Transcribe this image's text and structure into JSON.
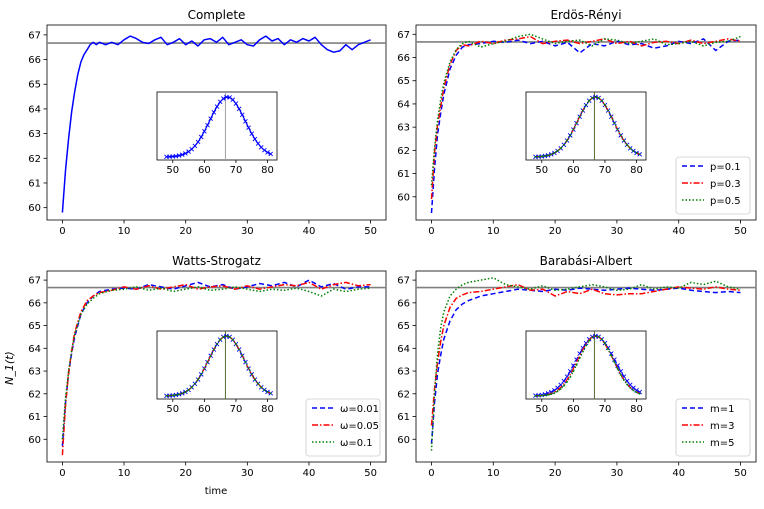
{
  "figure": {
    "ylabel": "N_1(t)",
    "xlabel": "time"
  },
  "chart_data": [
    {
      "type": "line",
      "title": "Complete",
      "xlim": [
        -2.5,
        52.5
      ],
      "ylim": [
        59.5,
        67.4
      ],
      "xticks": [
        0,
        10,
        20,
        30,
        40,
        50
      ],
      "yticks": [
        60,
        61,
        62,
        63,
        64,
        65,
        66,
        67
      ],
      "reference_line": 66.67,
      "legend": null,
      "series": [
        {
          "style": "solid",
          "color": "#0000ff",
          "x": [
            0,
            0.5,
            1,
            1.5,
            2,
            2.5,
            3,
            3.5,
            4,
            4.5,
            5,
            5.5,
            6,
            7,
            8,
            9,
            10,
            11,
            12,
            13,
            14,
            15,
            16,
            17,
            18,
            19,
            20,
            21,
            22,
            23,
            24,
            25,
            26,
            27,
            28,
            29,
            30,
            31,
            32,
            33,
            34,
            35,
            36,
            37,
            38,
            39,
            40,
            41,
            42,
            43,
            44,
            45,
            46,
            47,
            48,
            49,
            50
          ],
          "y": [
            59.8,
            61.5,
            62.8,
            63.9,
            64.7,
            65.4,
            65.9,
            66.2,
            66.4,
            66.6,
            66.7,
            66.6,
            66.7,
            66.6,
            66.7,
            66.6,
            66.8,
            66.95,
            66.85,
            66.7,
            66.65,
            66.8,
            66.9,
            66.6,
            66.7,
            66.85,
            66.6,
            66.75,
            66.55,
            66.8,
            66.85,
            66.7,
            66.9,
            66.6,
            66.7,
            66.8,
            66.6,
            66.55,
            66.8,
            66.95,
            66.75,
            66.85,
            66.6,
            66.8,
            66.7,
            66.85,
            66.75,
            66.9,
            66.6,
            66.4,
            66.3,
            66.35,
            66.6,
            66.4,
            66.6,
            66.7,
            66.8
          ]
        }
      ],
      "inset": {
        "xlim": [
          45,
          83
        ],
        "xticks": [
          50,
          60,
          70,
          80
        ],
        "ref_x": 66.67,
        "series": [
          {
            "style": "solid-x",
            "color": "#0000ff",
            "mean": 67.3,
            "sd": 5.6
          }
        ]
      }
    },
    {
      "type": "line",
      "title": "Erdös-Rényi",
      "xlim": [
        -2.5,
        52.5
      ],
      "ylim": [
        59,
        67.4
      ],
      "xticks": [
        0,
        10,
        20,
        30,
        40,
        50
      ],
      "yticks": [
        60,
        61,
        62,
        63,
        64,
        65,
        66,
        67
      ],
      "reference_line": 66.67,
      "legend": "lower right",
      "series": [
        {
          "name": "p=0.1",
          "style": "dashed",
          "color": "#0000ff",
          "x": [
            0,
            0.5,
            1,
            1.5,
            2,
            3,
            4,
            5,
            6,
            8,
            10,
            12,
            14,
            16,
            18,
            20,
            22,
            24,
            26,
            28,
            30,
            32,
            34,
            36,
            38,
            40,
            42,
            44,
            46,
            48,
            50
          ],
          "y": [
            59.3,
            61.2,
            62.7,
            63.6,
            64.4,
            65.5,
            66.1,
            66.45,
            66.55,
            66.6,
            66.7,
            66.65,
            66.75,
            66.6,
            66.7,
            66.5,
            66.65,
            66.2,
            66.6,
            66.5,
            66.7,
            66.55,
            66.6,
            66.4,
            66.5,
            66.7,
            66.6,
            66.8,
            66.3,
            66.7,
            66.75
          ]
        },
        {
          "name": "p=0.3",
          "style": "dashdot",
          "color": "#ff0000",
          "x": [
            0,
            0.5,
            1,
            1.5,
            2,
            3,
            4,
            5,
            6,
            8,
            10,
            12,
            14,
            16,
            18,
            20,
            22,
            24,
            26,
            28,
            30,
            32,
            34,
            36,
            38,
            40,
            42,
            44,
            46,
            48,
            50
          ],
          "y": [
            59.9,
            61.9,
            63.1,
            63.9,
            64.7,
            65.7,
            66.3,
            66.55,
            66.5,
            66.7,
            66.6,
            66.75,
            66.8,
            66.9,
            66.6,
            66.7,
            66.75,
            66.6,
            66.7,
            66.8,
            66.6,
            66.7,
            66.5,
            66.65,
            66.7,
            66.6,
            66.75,
            66.6,
            66.7,
            66.8,
            66.7
          ]
        },
        {
          "name": "p=0.5",
          "style": "dotted",
          "color": "#008000",
          "x": [
            0,
            0.5,
            1,
            1.5,
            2,
            3,
            4,
            5,
            6,
            8,
            10,
            12,
            14,
            16,
            18,
            20,
            22,
            24,
            26,
            28,
            30,
            32,
            34,
            36,
            38,
            40,
            42,
            44,
            46,
            48,
            50
          ],
          "y": [
            60.5,
            62.1,
            63.3,
            64.2,
            64.9,
            65.8,
            66.35,
            66.6,
            66.7,
            66.45,
            66.6,
            66.7,
            66.9,
            67.0,
            66.8,
            66.6,
            66.7,
            66.75,
            66.5,
            66.8,
            66.75,
            66.6,
            66.7,
            66.8,
            66.55,
            66.6,
            66.7,
            66.5,
            66.65,
            66.7,
            66.9
          ]
        }
      ],
      "inset": {
        "xlim": [
          45,
          83
        ],
        "xticks": [
          50,
          60,
          70,
          80
        ],
        "ref_x": 66.67,
        "series": [
          {
            "style": "dashed",
            "color": "#0000ff",
            "mean": 67.0,
            "sd": 5.6
          },
          {
            "style": "dashdot",
            "color": "#ff0000",
            "mean": 67.0,
            "sd": 5.6
          },
          {
            "style": "dotted",
            "color": "#008000",
            "mean": 67.0,
            "sd": 5.6
          }
        ]
      }
    },
    {
      "type": "line",
      "title": "Watts-Strogatz",
      "xlim": [
        -2.5,
        52.5
      ],
      "ylim": [
        59,
        67.4
      ],
      "xticks": [
        0,
        10,
        20,
        30,
        40,
        50
      ],
      "yticks": [
        60,
        61,
        62,
        63,
        64,
        65,
        66,
        67
      ],
      "reference_line": 66.67,
      "legend": "lower right",
      "series": [
        {
          "name": "ω=0.01",
          "style": "dashed",
          "color": "#0000ff",
          "x": [
            0,
            0.5,
            1,
            1.5,
            2,
            3,
            4,
            5,
            6,
            8,
            10,
            12,
            14,
            16,
            18,
            20,
            22,
            24,
            26,
            28,
            30,
            32,
            34,
            36,
            38,
            40,
            42,
            44,
            46,
            48,
            50
          ],
          "y": [
            59.7,
            61.6,
            62.9,
            63.8,
            64.5,
            65.5,
            66.0,
            66.3,
            66.5,
            66.6,
            66.65,
            66.6,
            66.8,
            66.7,
            66.6,
            66.75,
            66.9,
            66.7,
            66.8,
            66.6,
            66.7,
            66.85,
            66.75,
            66.9,
            66.7,
            67.0,
            66.7,
            66.85,
            66.6,
            66.7,
            66.7
          ]
        },
        {
          "name": "ω=0.05",
          "style": "dashdot",
          "color": "#ff0000",
          "x": [
            0,
            0.5,
            1,
            1.5,
            2,
            3,
            4,
            5,
            6,
            8,
            10,
            12,
            14,
            16,
            18,
            20,
            22,
            24,
            26,
            28,
            30,
            32,
            34,
            36,
            38,
            40,
            42,
            44,
            46,
            48,
            50
          ],
          "y": [
            59.3,
            61.5,
            62.9,
            63.9,
            64.7,
            65.6,
            66.1,
            66.3,
            66.45,
            66.55,
            66.7,
            66.6,
            66.75,
            66.6,
            66.7,
            66.8,
            66.6,
            66.7,
            66.75,
            66.6,
            66.75,
            66.6,
            66.7,
            66.8,
            66.75,
            66.9,
            66.6,
            66.8,
            66.9,
            66.75,
            66.8
          ]
        },
        {
          "name": "ω=0.1",
          "style": "dotted",
          "color": "#008000",
          "x": [
            0,
            0.5,
            1,
            1.5,
            2,
            3,
            4,
            5,
            6,
            8,
            10,
            12,
            14,
            16,
            18,
            20,
            22,
            24,
            26,
            28,
            30,
            32,
            34,
            36,
            38,
            40,
            42,
            44,
            46,
            48,
            50
          ],
          "y": [
            60.0,
            61.8,
            63.0,
            63.9,
            64.6,
            65.5,
            65.95,
            66.2,
            66.4,
            66.55,
            66.6,
            66.7,
            66.55,
            66.65,
            66.5,
            66.6,
            66.7,
            66.55,
            66.6,
            66.7,
            66.6,
            66.5,
            66.6,
            66.55,
            66.65,
            66.5,
            66.3,
            66.6,
            66.5,
            66.6,
            66.65
          ]
        }
      ],
      "inset": {
        "xlim": [
          45,
          83
        ],
        "xticks": [
          50,
          60,
          70,
          80
        ],
        "ref_x": 66.67,
        "series": [
          {
            "style": "dashed",
            "color": "#0000ff",
            "mean": 67.0,
            "sd": 5.6
          },
          {
            "style": "dashdot",
            "color": "#ff0000",
            "mean": 67.0,
            "sd": 5.6
          },
          {
            "style": "dotted",
            "color": "#008000",
            "mean": 67.0,
            "sd": 5.6
          }
        ]
      }
    },
    {
      "type": "line",
      "title": "Barabási-Albert",
      "xlim": [
        -2.5,
        52.5
      ],
      "ylim": [
        59,
        67.4
      ],
      "xticks": [
        0,
        10,
        20,
        30,
        40,
        50
      ],
      "yticks": [
        60,
        61,
        62,
        63,
        64,
        65,
        66,
        67
      ],
      "reference_line": 66.67,
      "legend": "lower right",
      "series": [
        {
          "name": "m=1",
          "style": "dashed",
          "color": "#0000ff",
          "x": [
            0,
            0.5,
            1,
            1.5,
            2,
            3,
            4,
            5,
            6,
            8,
            10,
            12,
            14,
            16,
            18,
            20,
            22,
            24,
            26,
            28,
            30,
            32,
            34,
            36,
            38,
            40,
            42,
            44,
            46,
            48,
            50
          ],
          "y": [
            59.8,
            61.6,
            62.9,
            63.7,
            64.4,
            65.2,
            65.7,
            65.95,
            66.1,
            66.3,
            66.4,
            66.5,
            66.6,
            66.55,
            66.5,
            66.6,
            66.55,
            66.65,
            66.6,
            66.55,
            66.6,
            66.65,
            66.6,
            66.55,
            66.6,
            66.65,
            66.55,
            66.5,
            66.45,
            66.5,
            66.45
          ]
        },
        {
          "name": "m=3",
          "style": "dashdot",
          "color": "#ff0000",
          "x": [
            0,
            0.5,
            1,
            1.5,
            2,
            3,
            4,
            5,
            6,
            8,
            10,
            12,
            14,
            16,
            18,
            20,
            22,
            24,
            26,
            28,
            30,
            32,
            34,
            36,
            38,
            40,
            42,
            44,
            46,
            48,
            50
          ],
          "y": [
            60.6,
            62.2,
            63.4,
            64.3,
            65.0,
            65.8,
            66.2,
            66.35,
            66.45,
            66.5,
            66.6,
            66.7,
            66.8,
            66.55,
            66.6,
            66.3,
            66.5,
            66.4,
            66.6,
            66.4,
            66.35,
            66.4,
            66.4,
            66.5,
            66.6,
            66.7,
            66.65,
            66.6,
            66.7,
            66.6,
            66.55
          ]
        },
        {
          "name": "m=5",
          "style": "dotted",
          "color": "#008000",
          "x": [
            0,
            0.5,
            1,
            1.5,
            2,
            3,
            4,
            5,
            6,
            8,
            10,
            12,
            14,
            16,
            18,
            20,
            22,
            24,
            26,
            28,
            30,
            32,
            34,
            36,
            38,
            40,
            42,
            44,
            46,
            48,
            50
          ],
          "y": [
            59.5,
            62.0,
            63.8,
            64.9,
            65.6,
            66.3,
            66.6,
            66.8,
            66.9,
            67.0,
            67.1,
            66.8,
            66.7,
            66.6,
            66.75,
            66.55,
            66.6,
            66.7,
            66.8,
            66.7,
            66.55,
            66.6,
            66.8,
            66.6,
            66.7,
            66.65,
            66.9,
            66.8,
            66.95,
            66.7,
            66.6
          ]
        }
      ],
      "inset": {
        "xlim": [
          45,
          83
        ],
        "xticks": [
          50,
          60,
          70,
          80
        ],
        "ref_x": 66.67,
        "series": [
          {
            "style": "dashed",
            "color": "#0000ff",
            "mean": 67.0,
            "sd": 6.0
          },
          {
            "style": "dashdot",
            "color": "#ff0000",
            "mean": 67.0,
            "sd": 5.6
          },
          {
            "style": "dotted",
            "color": "#008000",
            "mean": 67.2,
            "sd": 5.4
          }
        ]
      }
    }
  ]
}
